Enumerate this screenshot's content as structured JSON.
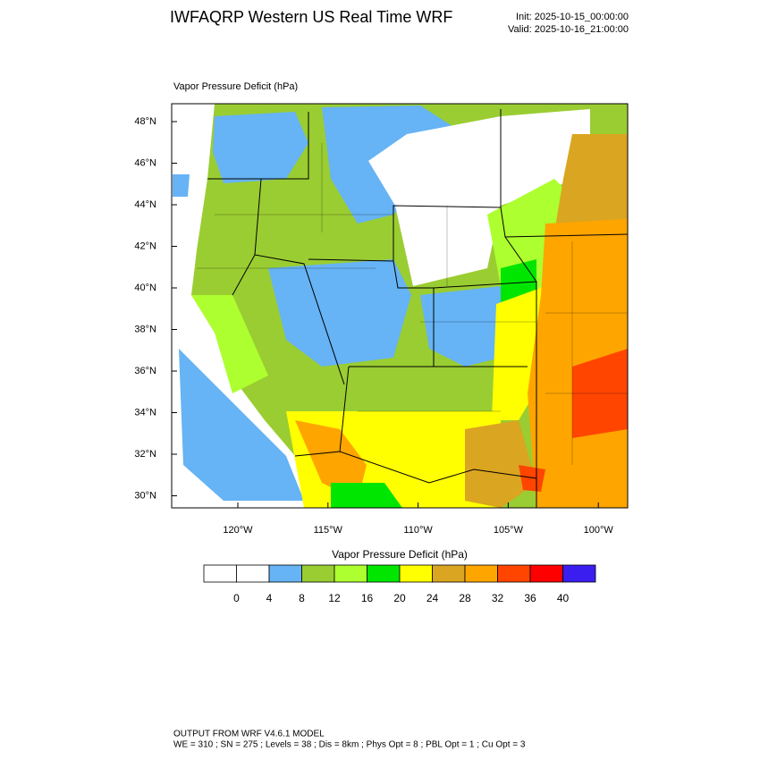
{
  "header": {
    "title": "IWFAQRP Western US Real Time WRF",
    "init": "Init: 2025-10-15_00:00:00",
    "valid": "Valid: 2025-10-16_21:00:00"
  },
  "map": {
    "title": "Vapor Pressure Deficit   (hPa)",
    "lat_labels": [
      "48°N",
      "46°N",
      "44°N",
      "42°N",
      "40°N",
      "38°N",
      "36°N",
      "34°N",
      "32°N",
      "30°N"
    ],
    "lon_labels": [
      "120°W",
      "115°W",
      "110°W",
      "105°W",
      "100°W"
    ]
  },
  "colorbar": {
    "title": "Vapor Pressure Deficit  (hPa)",
    "colors": [
      "#ffffff",
      "#ffffff",
      "#66b3f5",
      "#9acd32",
      "#adff2f",
      "#00e600",
      "#ffff00",
      "#daa520",
      "#ffa500",
      "#ff4500",
      "#ff0000",
      "#3a1ef0"
    ],
    "labels": [
      0,
      4,
      8,
      12,
      16,
      20,
      24,
      28,
      32,
      36,
      40
    ]
  },
  "footer": {
    "line1": "OUTPUT FROM WRF V4.6.1 MODEL",
    "line2": "WE = 310 ; SN = 275 ; Levels = 38 ; Dis = 8km ; Phys Opt = 8 ; PBL Opt = 1 ; Cu Opt = 3"
  }
}
